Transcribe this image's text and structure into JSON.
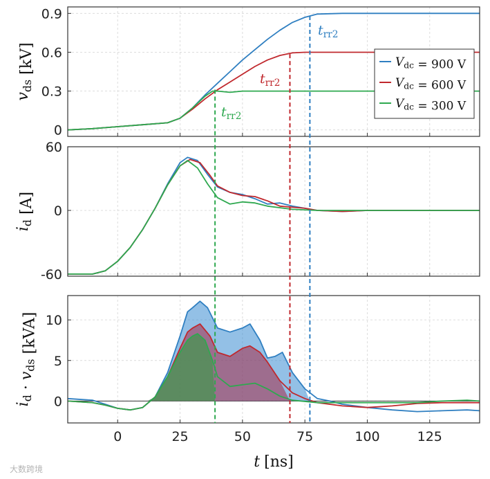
{
  "chart_data": {
    "type": "line",
    "title": "",
    "x_label_var": "t",
    "x_label_unit": "[ns]",
    "xlim": [
      -20,
      145
    ],
    "x_ticks": [
      0,
      25,
      50,
      75,
      100,
      125
    ],
    "grid": true,
    "series_names": [
      "V_dc = 900 V",
      "V_dc = 600 V",
      "V_dc = 300 V"
    ],
    "colors": {
      "900": "#2f7fc1",
      "600": "#c0282d",
      "300": "#2ea84f"
    },
    "legend": {
      "location": "top-right of top panel",
      "entries": [
        {
          "var": "V",
          "sub": "dc",
          "rest": " = 900 V",
          "color": "#2f7fc1"
        },
        {
          "var": "V",
          "sub": "dc",
          "rest": " = 600 V",
          "color": "#c0282d"
        },
        {
          "var": "V",
          "sub": "dc",
          "rest": " = 300 V",
          "color": "#2ea84f"
        }
      ]
    },
    "trr2_marks": [
      {
        "series": "900",
        "t": 77,
        "label_var": "t",
        "label_sub": "rr2",
        "color": "#2f7fc1"
      },
      {
        "series": "600",
        "t": 69,
        "label_var": "t",
        "label_sub": "rr2",
        "color": "#c0282d"
      },
      {
        "series": "300",
        "t": 39,
        "label_var": "t",
        "label_sub": "rr2",
        "color": "#2ea84f"
      }
    ],
    "panels": [
      {
        "id": "vds",
        "ylabel_var": "v",
        "ylabel_sub": "ds",
        "ylabel_unit": " [kV]",
        "ylim": [
          -0.05,
          0.95
        ],
        "y_ticks": [
          0,
          0.3,
          0.6,
          0.9
        ],
        "y_tick_labels": [
          "0",
          "0.3",
          "0.6",
          "0.9"
        ],
        "series": [
          {
            "name": "900",
            "x": [
              -20,
              -10,
              0,
              10,
              20,
              25,
              30,
              35,
              40,
              45,
              50,
              55,
              60,
              65,
              70,
              75,
              80,
              90,
              100,
              110,
              120,
              130,
              145
            ],
            "y": [
              0,
              0.01,
              0.025,
              0.04,
              0.055,
              0.09,
              0.17,
              0.27,
              0.36,
              0.45,
              0.54,
              0.62,
              0.7,
              0.77,
              0.83,
              0.87,
              0.895,
              0.9,
              0.9,
              0.9,
              0.9,
              0.9,
              0.9
            ]
          },
          {
            "name": "600",
            "x": [
              -20,
              -10,
              0,
              10,
              20,
              25,
              30,
              35,
              40,
              45,
              50,
              55,
              60,
              65,
              70,
              75,
              80,
              90,
              100,
              110,
              120,
              130,
              145
            ],
            "y": [
              0,
              0.01,
              0.025,
              0.04,
              0.055,
              0.09,
              0.16,
              0.24,
              0.31,
              0.37,
              0.43,
              0.49,
              0.54,
              0.575,
              0.595,
              0.6,
              0.6,
              0.6,
              0.6,
              0.6,
              0.6,
              0.6,
              0.6
            ]
          },
          {
            "name": "300",
            "x": [
              -20,
              -10,
              0,
              10,
              20,
              25,
              30,
              35,
              38,
              40,
              45,
              50,
              60,
              70,
              80,
              90,
              100,
              110,
              120,
              130,
              145
            ],
            "y": [
              0,
              0.01,
              0.025,
              0.04,
              0.055,
              0.09,
              0.17,
              0.26,
              0.3,
              0.3,
              0.29,
              0.3,
              0.3,
              0.3,
              0.3,
              0.3,
              0.3,
              0.3,
              0.3,
              0.3,
              0.3
            ]
          }
        ]
      },
      {
        "id": "id",
        "ylabel_var": "i",
        "ylabel_sub": "d",
        "ylabel_unit": " [A]",
        "ylim": [
          -62,
          60
        ],
        "y_ticks": [
          -60,
          0,
          60
        ],
        "y_tick_labels": [
          "-60",
          "0",
          "60"
        ],
        "series": [
          {
            "name": "900",
            "x": [
              -20,
              -10,
              -5,
              0,
              5,
              10,
              15,
              20,
              25,
              28,
              32,
              36,
              40,
              45,
              50,
              55,
              60,
              65,
              70,
              75,
              80,
              90,
              100,
              120,
              145
            ],
            "y": [
              -60,
              -60,
              -57,
              -48,
              -35,
              -18,
              2,
              25,
              45,
              50,
              47,
              34,
              22,
              17,
              15,
              11,
              6,
              7,
              4,
              2,
              0,
              -1,
              0,
              0,
              0
            ]
          },
          {
            "name": "600",
            "x": [
              -20,
              -10,
              -5,
              0,
              5,
              10,
              15,
              20,
              25,
              29,
              33,
              37,
              40,
              45,
              50,
              55,
              60,
              65,
              70,
              75,
              80,
              90,
              100,
              120,
              145
            ],
            "y": [
              -60,
              -60,
              -57,
              -48,
              -35,
              -18,
              2,
              24,
              42,
              48,
              45,
              33,
              23,
              17,
              14,
              13,
              9,
              4,
              3,
              2,
              0,
              -1,
              0,
              0,
              0
            ]
          },
          {
            "name": "300",
            "x": [
              -20,
              -10,
              -5,
              0,
              5,
              10,
              15,
              20,
              25,
              28,
              32,
              36,
              40,
              45,
              50,
              55,
              60,
              70,
              80,
              90,
              100,
              120,
              145
            ],
            "y": [
              -60,
              -60,
              -57,
              -48,
              -35,
              -18,
              2,
              24,
              42,
              47,
              40,
              25,
              12,
              6,
              8,
              7,
              4,
              1,
              0,
              0,
              0,
              0,
              0
            ]
          }
        ]
      },
      {
        "id": "power",
        "ylabel_var": "i",
        "ylabel_sub": "d",
        "ylabel_mid": " · ",
        "ylabel_var2": "v",
        "ylabel_sub2": "ds",
        "ylabel_unit": " [kVA]",
        "ylim": [
          -2.7,
          13
        ],
        "y_ticks": [
          0,
          5,
          10
        ],
        "y_tick_labels": [
          "0",
          "5",
          "10"
        ],
        "series": [
          {
            "name": "900",
            "x": [
              -20,
              -10,
              -5,
              0,
              5,
              10,
              15,
              20,
              25,
              28,
              30,
              33,
              36,
              40,
              45,
              50,
              53,
              57,
              60,
              63,
              66,
              70,
              75,
              80,
              85,
              90,
              100,
              110,
              120,
              130,
              140,
              145
            ],
            "y": [
              0.3,
              0.1,
              -0.4,
              -0.9,
              -1.1,
              -0.8,
              0.5,
              3.5,
              8,
              11,
              11.5,
              12.3,
              11.5,
              9,
              8.5,
              9,
              9.5,
              7.5,
              5.3,
              5.5,
              6,
              3.5,
              1.5,
              0.3,
              0,
              -0.4,
              -0.8,
              -1.1,
              -1.3,
              -1.2,
              -1.1,
              -1.2
            ]
          },
          {
            "name": "600",
            "x": [
              -20,
              -10,
              -5,
              0,
              5,
              10,
              15,
              20,
              25,
              28,
              30,
              33,
              37,
              40,
              45,
              50,
              53,
              57,
              60,
              65,
              70,
              75,
              80,
              90,
              100,
              110,
              120,
              130,
              140,
              145
            ],
            "y": [
              0,
              -0.2,
              -0.5,
              -0.9,
              -1.1,
              -0.8,
              0.5,
              3,
              6.5,
              8.5,
              9,
              9.5,
              8,
              6,
              5.5,
              6.5,
              6.8,
              6,
              4.8,
              2.5,
              1,
              0.3,
              -0.2,
              -0.6,
              -0.8,
              -0.6,
              -0.3,
              -0.2,
              -0.2,
              -0.2
            ]
          },
          {
            "name": "300",
            "x": [
              -20,
              -10,
              -5,
              0,
              5,
              10,
              15,
              20,
              25,
              28,
              30,
              32,
              35,
              38,
              40,
              45,
              50,
              55,
              60,
              65,
              70,
              80,
              90,
              100,
              110,
              120,
              130,
              140,
              145
            ],
            "y": [
              0,
              -0.2,
              -0.5,
              -0.9,
              -1.1,
              -0.8,
              0.5,
              3,
              6,
              7.5,
              8,
              8.3,
              7.5,
              5,
              3,
              1.8,
              2,
              2.2,
              1.5,
              0.6,
              0.1,
              -0.2,
              -0.2,
              -0.2,
              -0.2,
              -0.2,
              0,
              0.1,
              0
            ]
          }
        ]
      }
    ]
  },
  "watermark": "大数跨境"
}
